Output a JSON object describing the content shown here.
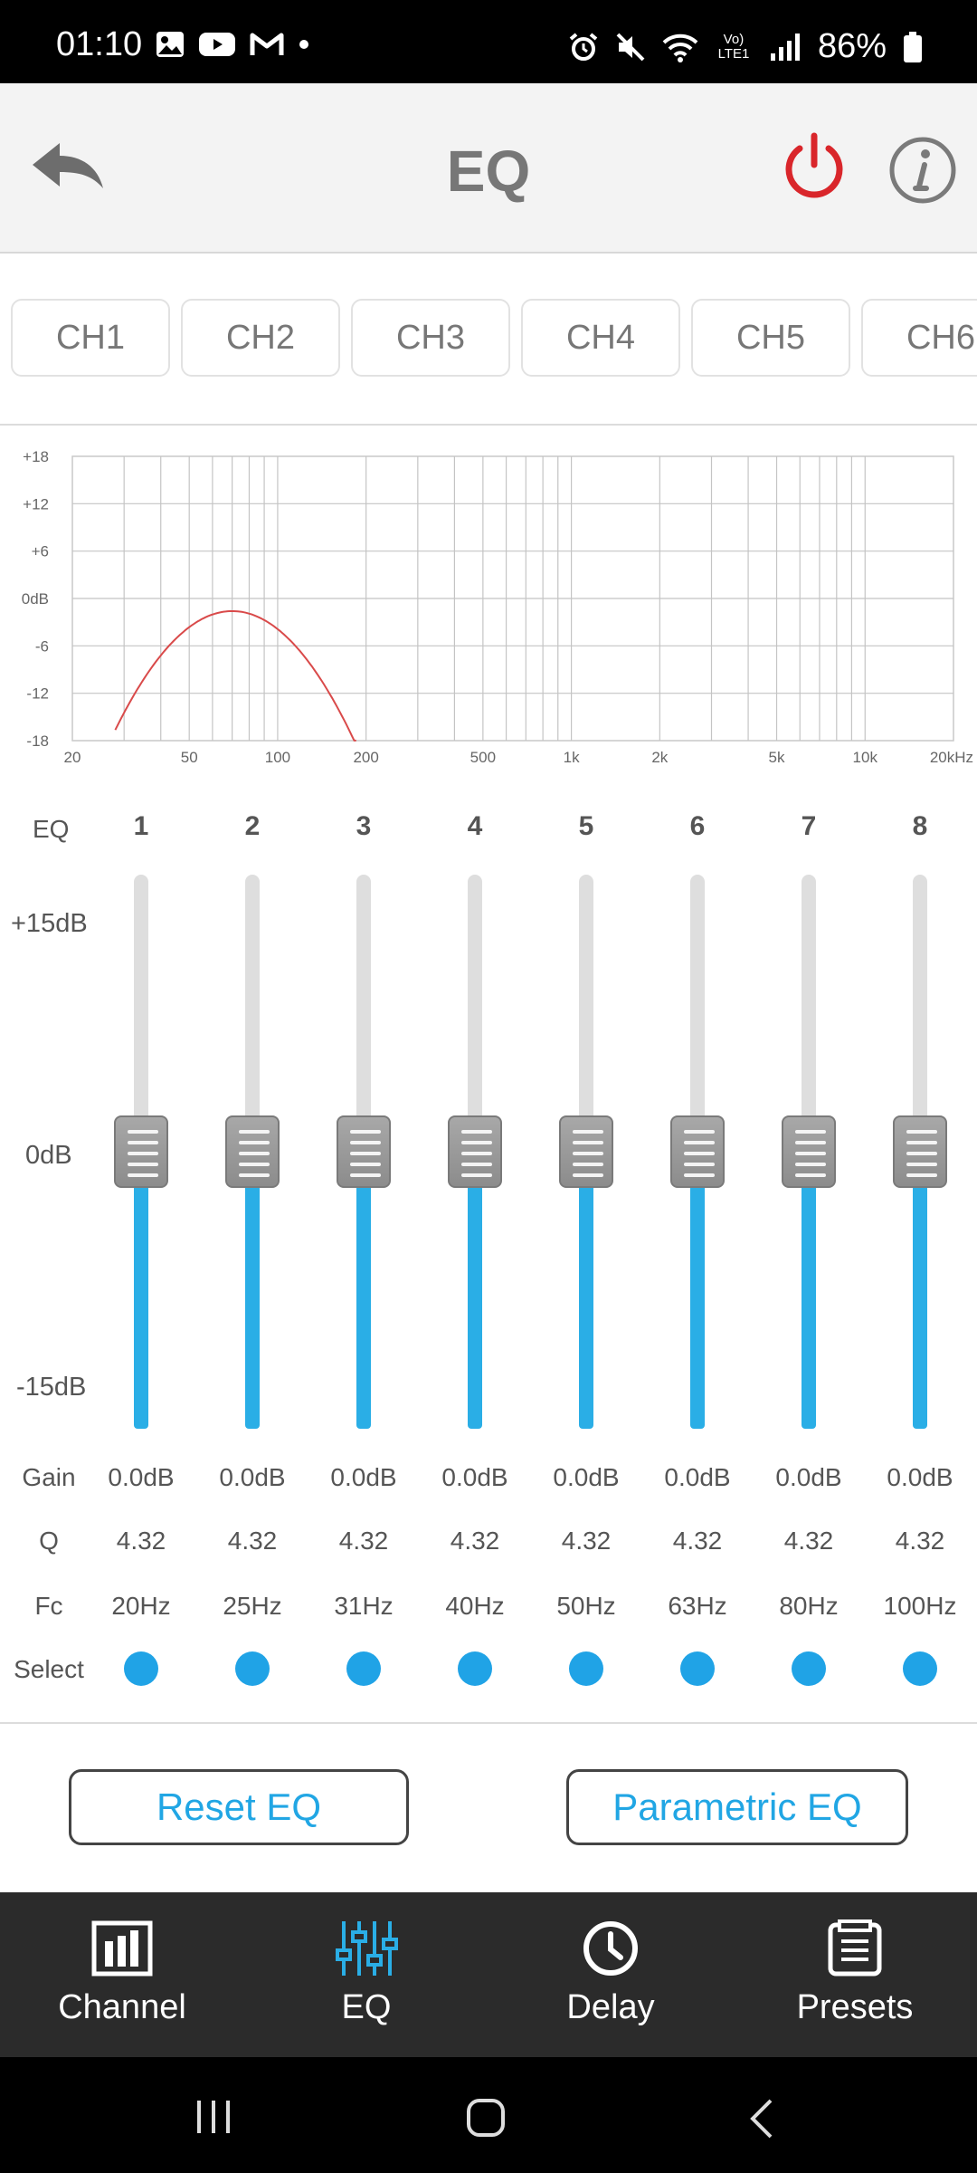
{
  "status_bar": {
    "time": "01:10",
    "battery": "86%",
    "left_icons": [
      "gallery-icon",
      "youtube-icon",
      "gmail-icon",
      "dot-icon"
    ],
    "right_icons": [
      "alarm-icon",
      "mute-icon",
      "wifi-icon",
      "volte-icon",
      "signal-icon",
      "battery-icon"
    ],
    "volte_label": "Vo) LTE1"
  },
  "header": {
    "title": "EQ",
    "back_icon": "back-arrow-icon",
    "power_icon": "power-icon",
    "info_icon": "info-icon",
    "power_color": "#d9262b"
  },
  "channels": [
    "CH1",
    "CH2",
    "CH3",
    "CH4",
    "CH5",
    "CH6"
  ],
  "graph": {
    "y_ticks": [
      "+18",
      "+12",
      "+6",
      "0dB",
      "-6",
      "-12",
      "-18"
    ],
    "x_ticks": [
      "20",
      "50",
      "100",
      "200",
      "500",
      "1k",
      "2k",
      "5k",
      "10k",
      "20kHz"
    ],
    "curve_color": "#d94a4a"
  },
  "eq": {
    "header_label": "EQ",
    "scale_labels": {
      "top": "+15dB",
      "mid": "0dB",
      "bottom": "-15dB"
    },
    "row_labels": {
      "gain": "Gain",
      "q": "Q",
      "fc": "Fc",
      "select": "Select"
    },
    "bands": [
      {
        "num": "1",
        "gain": "0.0dB",
        "q": "4.32",
        "fc": "20Hz",
        "level_db": 0
      },
      {
        "num": "2",
        "gain": "0.0dB",
        "q": "4.32",
        "fc": "25Hz",
        "level_db": 0
      },
      {
        "num": "3",
        "gain": "0.0dB",
        "q": "4.32",
        "fc": "31Hz",
        "level_db": 0
      },
      {
        "num": "4",
        "gain": "0.0dB",
        "q": "4.32",
        "fc": "40Hz",
        "level_db": 0
      },
      {
        "num": "5",
        "gain": "0.0dB",
        "q": "4.32",
        "fc": "50Hz",
        "level_db": 0
      },
      {
        "num": "6",
        "gain": "0.0dB",
        "q": "4.32",
        "fc": "63Hz",
        "level_db": 0
      },
      {
        "num": "7",
        "gain": "0.0dB",
        "q": "4.32",
        "fc": "80Hz",
        "level_db": 0
      },
      {
        "num": "8",
        "gain": "0.0dB",
        "q": "4.32",
        "fc": "100Hz",
        "level_db": 0
      }
    ],
    "accent_color": "#2aaee6"
  },
  "buttons": {
    "reset": "Reset EQ",
    "parametric": "Parametric EQ"
  },
  "nav": {
    "items": [
      {
        "label": "Channel",
        "icon": "channel-icon"
      },
      {
        "label": "EQ",
        "icon": "eq-sliders-icon"
      },
      {
        "label": "Delay",
        "icon": "clock-icon"
      },
      {
        "label": "Presets",
        "icon": "presets-icon"
      }
    ],
    "active": "EQ"
  },
  "system_nav": [
    "recents-icon",
    "home-icon",
    "back-icon"
  ]
}
